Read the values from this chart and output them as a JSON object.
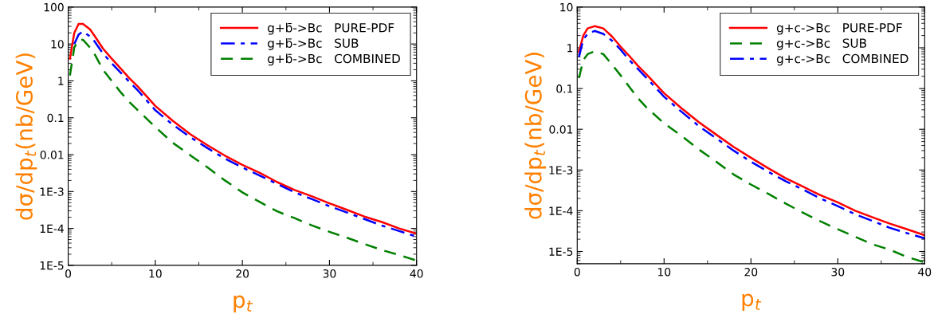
{
  "chart_data": [
    {
      "type": "line",
      "xlabel": "p$_{t}$",
      "ylabel": "dσ/dp$_{t}$(nb/GeV)",
      "log": "y",
      "legend": "top right",
      "grid": false,
      "x": [
        0.2,
        0.7,
        1.2,
        1.7,
        2.5,
        3,
        4,
        5,
        6,
        7,
        8,
        10,
        12,
        14,
        16,
        18,
        20,
        22,
        24,
        26,
        28,
        30,
        32,
        34,
        36,
        38,
        40
      ],
      "xlim": [
        0,
        40
      ],
      "xticks": [
        0,
        10,
        20,
        30,
        40
      ],
      "ylim": [
        1e-05,
        100
      ],
      "yticks": [
        {
          "value": 100,
          "label": "100"
        },
        {
          "value": 10,
          "label": "10"
        },
        {
          "value": 1,
          "label": "1"
        },
        {
          "value": 0.1,
          "label": "0.1"
        },
        {
          "value": 0.01,
          "label": "0.01"
        },
        {
          "value": 0.001,
          "label": "1E-3"
        },
        {
          "value": 0.0001,
          "label": "1E-4"
        },
        {
          "value": 1e-05,
          "label": "1E-5"
        }
      ],
      "series": [
        {
          "name": "g+b̄->Bc   PURE-PDF",
          "color": "#ff0000",
          "line_style": "solid",
          "values": [
            4,
            20,
            35,
            35,
            25,
            17,
            7.5,
            4,
            2.2,
            1.2,
            0.7,
            0.21,
            0.083,
            0.036,
            0.018,
            0.0094,
            0.0053,
            0.0032,
            0.0018,
            0.0011,
            0.00074,
            0.00048,
            0.00032,
            0.00021,
            0.00015,
            0.0001,
            7.2e-05
          ]
        },
        {
          "name": "g+b̄->Bc   SUB",
          "color": "#0000ff",
          "line_style": "dashdot",
          "values": [
            null,
            10,
            18,
            22,
            16,
            12,
            5.5,
            3,
            1.7,
            0.95,
            0.55,
            0.16,
            0.065,
            0.03,
            0.015,
            0.0078,
            0.0045,
            0.0027,
            0.0016,
            0.00095,
            0.00062,
            0.0004,
            0.00027,
            0.00018,
            0.00012,
            8.5e-05,
            6e-05
          ]
        },
        {
          "name": "g+b̄->Bc   COMBINED",
          "color": "#008000",
          "line_style": "dashed",
          "values": [
            1.4,
            8,
            13,
            13,
            8,
            5.5,
            2,
            1,
            0.5,
            0.27,
            0.16,
            0.056,
            0.021,
            0.0097,
            0.0045,
            0.002,
            0.00095,
            0.00052,
            0.00029,
            0.00019,
            0.00012,
            8.1e-05,
            5.6e-05,
            3.8e-05,
            2.6e-05,
            1.9e-05,
            1.35e-05
          ]
        }
      ]
    },
    {
      "type": "line",
      "xlabel": "p$_{t}$",
      "ylabel": "dσ/dp$_{t}$(nb/GeV)",
      "log": "y",
      "legend": "top right",
      "grid": false,
      "x": [
        0.2,
        0.7,
        1.2,
        2,
        3,
        4,
        5,
        6,
        7,
        8,
        10,
        12,
        14,
        16,
        18,
        20,
        22,
        24,
        26,
        28,
        30,
        32,
        34,
        36,
        38,
        40
      ],
      "xlim": [
        0,
        40
      ],
      "xticks": [
        0,
        10,
        20,
        30,
        40
      ],
      "ylim": [
        5e-06,
        10
      ],
      "yticks": [
        {
          "value": 10,
          "label": "10"
        },
        {
          "value": 1,
          "label": "1"
        },
        {
          "value": 0.1,
          "label": "0.1"
        },
        {
          "value": 0.01,
          "label": "0.01"
        },
        {
          "value": 0.001,
          "label": "1E-3"
        },
        {
          "value": 0.0001,
          "label": "1E-4"
        },
        {
          "value": 1e-05,
          "label": "1E-5"
        }
      ],
      "series": [
        {
          "name": "g+c->Bc   PURE-PDF",
          "color": "#ff0000",
          "line_style": "solid",
          "values": [
            0.8,
            2,
            3,
            3.4,
            3,
            1.9,
            1.07,
            0.63,
            0.36,
            0.22,
            0.077,
            0.033,
            0.015,
            0.0074,
            0.0037,
            0.002,
            0.0011,
            0.00063,
            0.00039,
            0.00024,
            0.00016,
            0.0001,
            6.9e-05,
            4.8e-05,
            3.5e-05,
            2.5e-05
          ]
        },
        {
          "name": "g+c->Bc   SUB",
          "color": "#008000",
          "line_style": "dashed",
          "values": [
            0.18,
            0.5,
            0.7,
            0.82,
            0.7,
            0.39,
            0.21,
            0.11,
            0.058,
            0.034,
            0.014,
            0.0069,
            0.0032,
            0.0016,
            0.00078,
            0.00044,
            0.00026,
            0.00015,
            8.9e-05,
            5.5e-05,
            3.5e-05,
            2.3e-05,
            1.5e-05,
            1.1e-05,
            7.3e-06,
            5.4e-06
          ]
        },
        {
          "name": "g+c->Bc   COMBINED",
          "color": "#0000ff",
          "line_style": "dashdot",
          "values": [
            0.6,
            1.6,
            2.2,
            2.6,
            2.2,
            1.5,
            0.9,
            0.5,
            0.3,
            0.18,
            0.063,
            0.027,
            0.012,
            0.006,
            0.003,
            0.0016,
            0.0009,
            0.00053,
            0.00033,
            0.0002,
            0.00013,
            8.2e-05,
            5.6e-05,
            3.8e-05,
            2.8e-05,
            2.1e-05
          ]
        }
      ]
    }
  ]
}
